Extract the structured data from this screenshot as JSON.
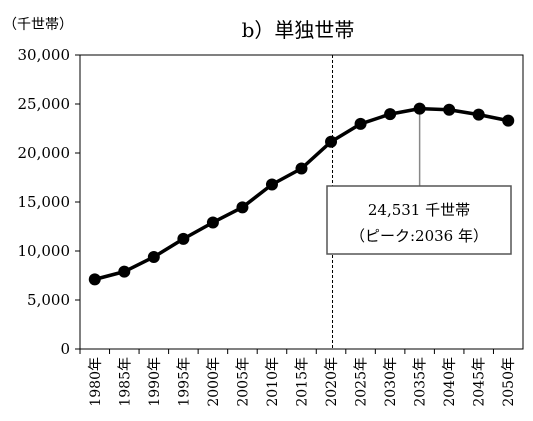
{
  "chart_data": {
    "type": "line",
    "title": "b）単独世帯",
    "unit_label": "（千世帯）",
    "x": [
      "1980年",
      "1985年",
      "1990年",
      "1995年",
      "2000年",
      "2005年",
      "2010年",
      "2015年",
      "2020年",
      "2025年",
      "2030年",
      "2035年",
      "2040年",
      "2045年",
      "2050年"
    ],
    "series": [
      {
        "values": [
          7105,
          7895,
          9390,
          11239,
          12911,
          14457,
          16785,
          18418,
          21151,
          22967,
          23970,
          24531,
          24412,
          23916,
          23301
        ]
      }
    ],
    "ylim": [
      0,
      30000
    ],
    "y_ticks": [
      "0",
      "5,000",
      "10,000",
      "15,000",
      "20,000",
      "25,000",
      "30,000"
    ],
    "divider_after_index": 8,
    "grid": false,
    "annotation": {
      "line1": "24,531 千世帯",
      "line2": "（ピーク:2036 年）",
      "points_to_index": 11
    },
    "colors": {
      "series": "#000000",
      "plot_border": "#000000",
      "callout_border": "#555555"
    }
  }
}
